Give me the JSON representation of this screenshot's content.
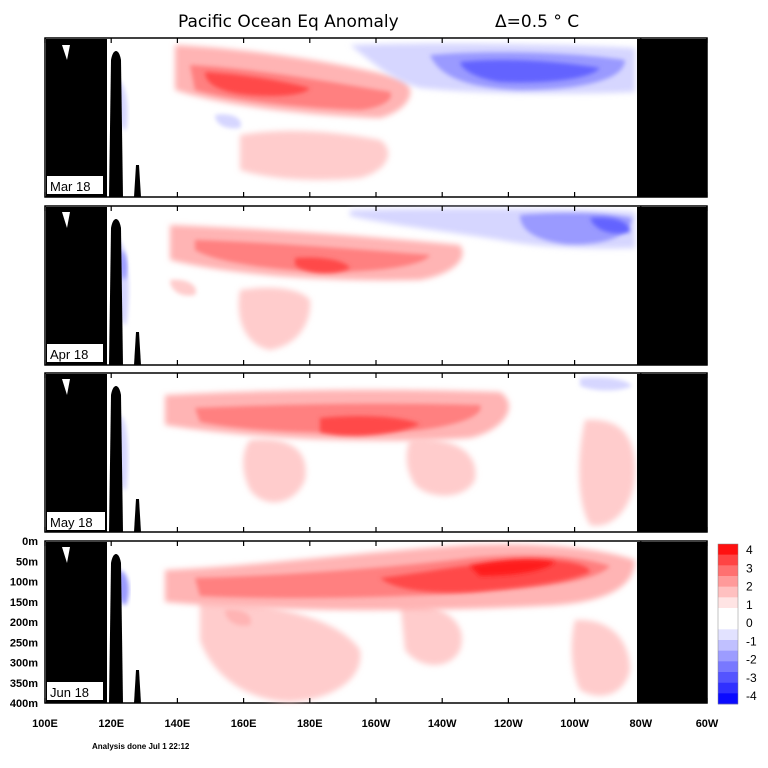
{
  "title": "Pacific Ocean Eq Anomaly",
  "subtitle": "Δ=0.5 ° C",
  "footnote": "Analysis done Jul 1 22:12",
  "chart_data": {
    "type": "heatmap",
    "x_ticks": [
      "100E",
      "120E",
      "140E",
      "160E",
      "180E",
      "160W",
      "140W",
      "120W",
      "100W",
      "80W",
      "60W"
    ],
    "y_ticks": [
      "0m",
      "50m",
      "100m",
      "150m",
      "200m",
      "250m",
      "300m",
      "350m",
      "400m"
    ],
    "xlim_lon_east": [
      100,
      300
    ],
    "ylim_depth_m": [
      0,
      400
    ],
    "contour_interval_c": 0.5,
    "colorbar": {
      "labels": [
        "4",
        "3",
        "2",
        "1",
        "0",
        "-1",
        "-2",
        "-3",
        "-4"
      ],
      "colors": [
        "#ff1010",
        "#ff4444",
        "#ff7070",
        "#ff9a9a",
        "#ffc0c0",
        "#ffe4e4",
        "#ffffff",
        "#ffffff",
        "#e2e2ff",
        "#c0c0ff",
        "#9c9cff",
        "#7878ff",
        "#5454ff",
        "#3030ff",
        "#0a0aff"
      ]
    },
    "panels": [
      {
        "label": "Mar 18",
        "features": [
          {
            "kind": "warm",
            "lon": [
              135,
              210
            ],
            "depth": [
              20,
              60
            ],
            "value": 3.5
          },
          {
            "kind": "warm",
            "lon": [
              150,
              200
            ],
            "depth": [
              100,
              180
            ],
            "value": 1
          },
          {
            "kind": "cool",
            "lon": [
              230,
              295
            ],
            "depth": [
              0,
              60
            ],
            "value": -3.5
          },
          {
            "kind": "cool",
            "lon": [
              122,
              130
            ],
            "depth": [
              50,
              150
            ],
            "value": -1
          }
        ]
      },
      {
        "label": "Apr 18",
        "features": [
          {
            "kind": "warm",
            "lon": [
              140,
              225
            ],
            "depth": [
              20,
              70
            ],
            "value": 3
          },
          {
            "kind": "warm",
            "lon": [
              150,
              180
            ],
            "depth": [
              100,
              200
            ],
            "value": 1
          },
          {
            "kind": "cool",
            "lon": [
              255,
              295
            ],
            "depth": [
              0,
              40
            ],
            "value": -3
          },
          {
            "kind": "cool",
            "lon": [
              122,
              130
            ],
            "depth": [
              30,
              150
            ],
            "value": -1.5
          }
        ]
      },
      {
        "label": "May 18",
        "features": [
          {
            "kind": "warm",
            "lon": [
              140,
              245
            ],
            "depth": [
              20,
              80
            ],
            "value": 3
          },
          {
            "kind": "warm",
            "lon": [
              200,
              240
            ],
            "depth": [
              100,
              200
            ],
            "value": 1
          },
          {
            "kind": "warm",
            "lon": [
              270,
              295
            ],
            "depth": [
              100,
              300
            ],
            "value": 1
          },
          {
            "kind": "cool",
            "lon": [
              122,
              130
            ],
            "depth": [
              80,
              200
            ],
            "value": -1
          }
        ]
      },
      {
        "label": "Jun 18",
        "features": [
          {
            "kind": "warm",
            "lon": [
              140,
              285
            ],
            "depth": [
              10,
              80
            ],
            "value": 4
          },
          {
            "kind": "warm",
            "lon": [
              150,
              300
            ],
            "depth": [
              100,
              350
            ],
            "value": 1
          },
          {
            "kind": "cool",
            "lon": [
              122,
              130
            ],
            "depth": [
              50,
              150
            ],
            "value": -1.5
          }
        ]
      }
    ]
  }
}
